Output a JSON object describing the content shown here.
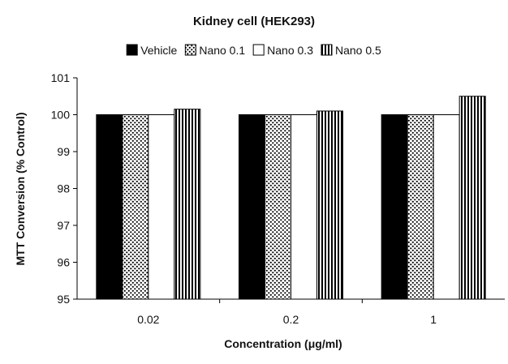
{
  "chart_data": {
    "type": "bar",
    "title": "Kidney cell  (HEK293)",
    "xlabel": "Concentration (μg/ml)",
    "ylabel": "MTT Conversion (% Control)",
    "categories": [
      "0.02",
      "0.2",
      "1"
    ],
    "ylim": [
      95,
      101
    ],
    "yticks": [
      95,
      96,
      97,
      98,
      99,
      100,
      101
    ],
    "legend_position": "top",
    "series": [
      {
        "name": "Vehicle",
        "values": [
          100,
          100,
          100
        ],
        "pattern": "solid-black"
      },
      {
        "name": "Nano 0.1",
        "values": [
          100,
          100,
          100
        ],
        "pattern": "dots"
      },
      {
        "name": "Nano 0.3",
        "values": [
          100,
          100,
          100
        ],
        "pattern": "white"
      },
      {
        "name": "Nano 0.5",
        "values": [
          100.15,
          100.1,
          100.5
        ],
        "pattern": "vertical-stripes"
      }
    ]
  }
}
